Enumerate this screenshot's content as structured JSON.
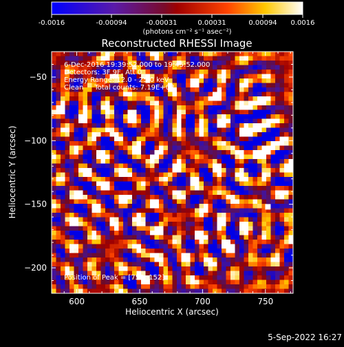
{
  "colorbar": {
    "ticks": [
      "-0.0016",
      "-0.00094",
      "-0.00031",
      "0.00031",
      "0.00094",
      "0.0016"
    ],
    "unit_label": "(photons cm⁻² s⁻¹ asec⁻²)",
    "min": -0.0016,
    "max": 0.0016
  },
  "footer": {
    "timestamp": "5-Sep-2022 16:27"
  },
  "chart_data": {
    "type": "heatmap",
    "title": "Reconstructed RHESSI Image",
    "xlabel": "Heliocentric X (arcsec)",
    "ylabel": "Heliocentric Y (arcsec)",
    "xlim": [
      580,
      772
    ],
    "ylim": [
      -220,
      -30
    ],
    "xticks": [
      600,
      650,
      700,
      750
    ],
    "yticks": [
      -50,
      -100,
      -150,
      -200
    ],
    "peak_position": [
      752,
      -152
    ],
    "annotations": [
      "6-Dec-2016 19:39:52.000 to 19:45:52.000",
      "Detectors: 3F 9F, Att 0",
      "Energy Range: 12.0 - 25.0 keV",
      "Clean     Total counts: 7.19E+03",
      "Position of Peak = [752,-152]"
    ],
    "colormap": "hot-with-blue-negative"
  }
}
